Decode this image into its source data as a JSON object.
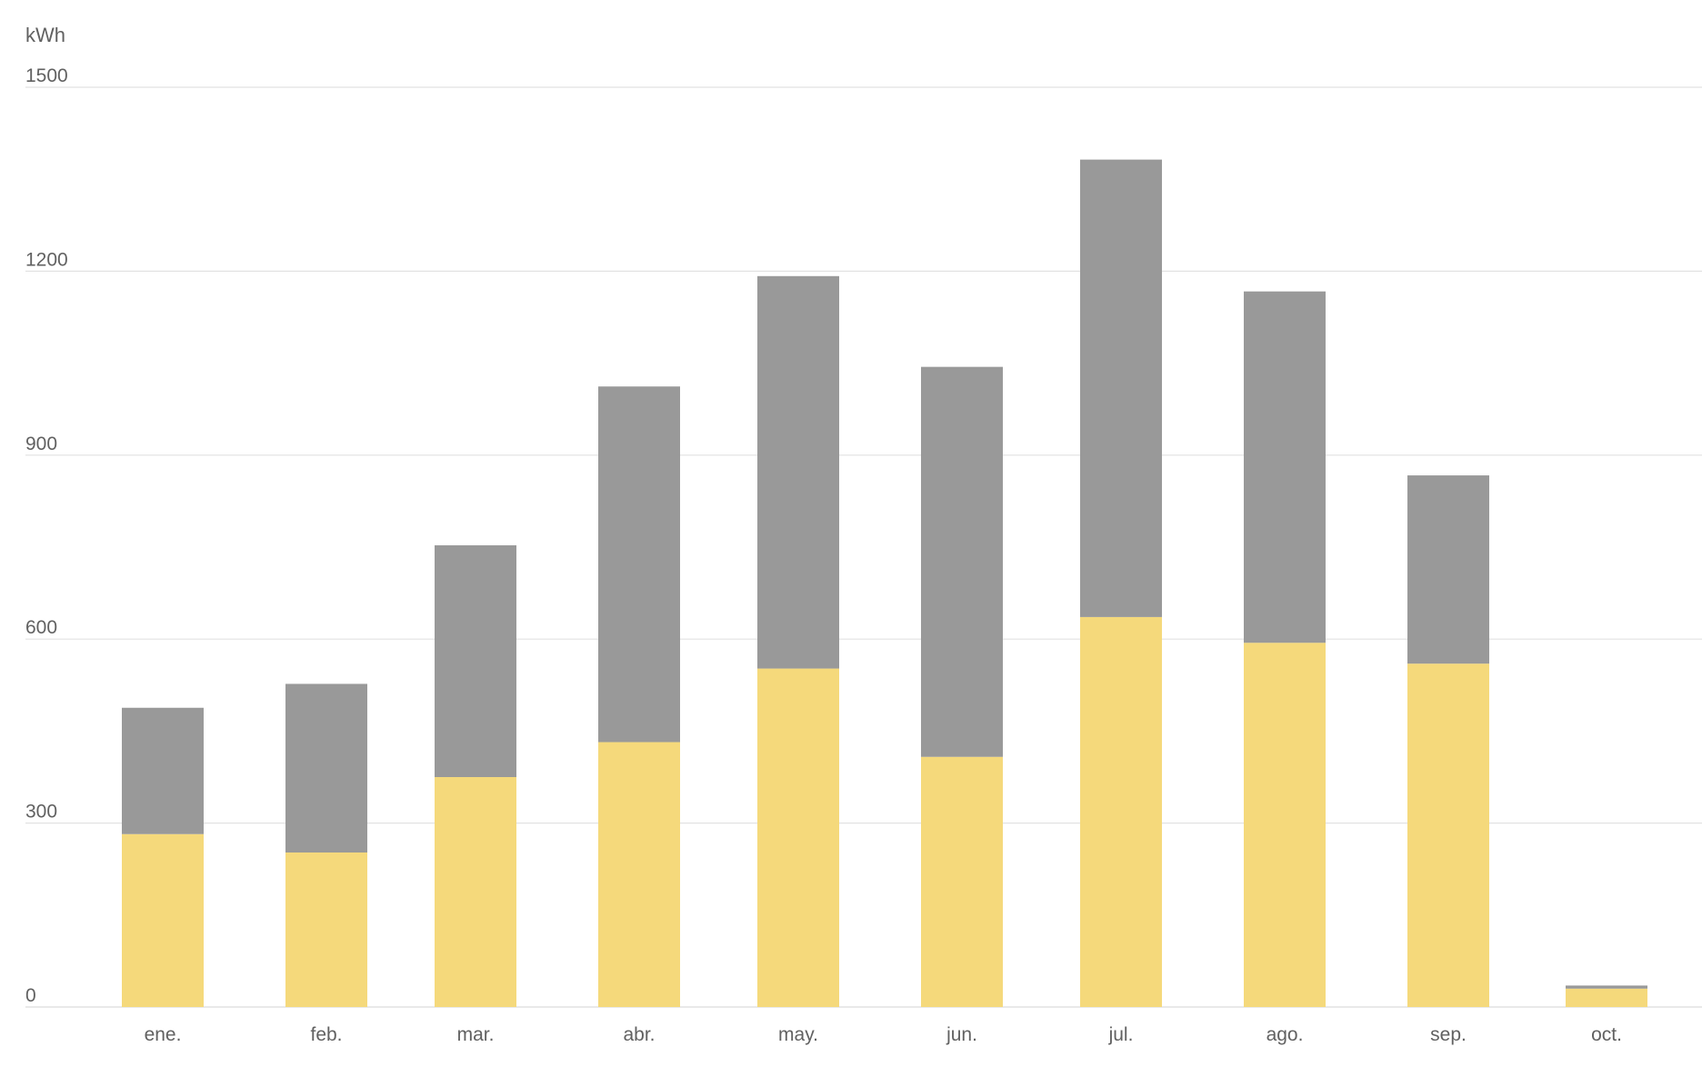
{
  "chart_data": {
    "type": "bar",
    "stacked": true,
    "ylabel": "kWh",
    "xlabel": "",
    "title": "",
    "ylim": [
      0,
      1500
    ],
    "yticks": [
      0,
      300,
      600,
      900,
      1200,
      1500
    ],
    "grid": true,
    "legend": "none",
    "categories": [
      "ene.",
      "feb.",
      "mar.",
      "abr.",
      "may.",
      "jun.",
      "jul.",
      "ago.",
      "sep.",
      "oct."
    ],
    "series": [
      {
        "color": "#f5d97b",
        "values": [
          282,
          252,
          375,
          432,
          552,
          408,
          636,
          594,
          560,
          30
        ]
      },
      {
        "color": "#999999",
        "values": [
          206,
          275,
          378,
          580,
          640,
          636,
          746,
          573,
          307,
          5
        ]
      }
    ]
  }
}
